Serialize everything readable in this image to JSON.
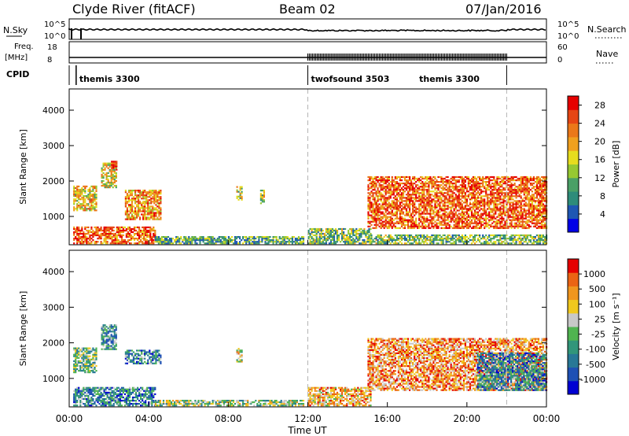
{
  "header": {
    "site": "Clyde River (fitACF)",
    "beam": "Beam 02",
    "date": "07/Jan/2016"
  },
  "strip_labels": {
    "nsky": "N.Sky",
    "nsky_ticks": [
      "10^5",
      "10^0"
    ],
    "nsearch": "N.Search",
    "nsearch_ticks": [
      "10^5",
      "10^0"
    ],
    "freq_line1": "Freq.",
    "freq_line2": "[MHz]",
    "freq_ticks": [
      "18",
      "8"
    ],
    "nave": "Nave",
    "nave_ticks": [
      "60",
      "0"
    ],
    "cpid": "CPID"
  },
  "cpid_segments": [
    {
      "label": "themis 3300",
      "start_hour": 0.35,
      "end_hour": 12.0
    },
    {
      "label": "twofsound 3503",
      "start_hour": 12.0,
      "end_hour": 22.0
    },
    {
      "label": "themis 3300",
      "start_hour": 22.0,
      "end_hour": 24.0,
      "label_at_hour": 17.6
    }
  ],
  "colors": {
    "power": [
      "#0000e6",
      "#1f57b3",
      "#2e8c7a",
      "#4aa066",
      "#96c832",
      "#e6dc1e",
      "#f0a01e",
      "#eb7819",
      "#e64614",
      "#e60000"
    ],
    "velocity": [
      "#0000d2",
      "#1e50b4",
      "#287896",
      "#32967a",
      "#50b450",
      "#c8c8c8",
      "#f0c81e",
      "#f0961e",
      "#eb6414",
      "#e60000"
    ],
    "dashed_marker": "#b4b4b4"
  },
  "chart_data": [
    {
      "type": "heatmap",
      "title": "Power",
      "xlabel": "Time UT",
      "ylabel": "Slant Range [km]",
      "xlim": [
        0,
        24
      ],
      "ylim": [
        200,
        4600
      ],
      "x_ticks": [
        "00:00",
        "04:00",
        "08:00",
        "12:00",
        "16:00",
        "20:00",
        "00:00"
      ],
      "y_ticks": [
        "1000",
        "2000",
        "3000",
        "4000"
      ],
      "colorbar": {
        "label": "Power [dB]",
        "ticks": [
          "4",
          "8",
          "12",
          "16",
          "20",
          "24",
          "28"
        ],
        "range": [
          0,
          30
        ]
      },
      "dashed_lines_hour": [
        12,
        22
      ],
      "regions": [
        {
          "t": [
            0.2,
            1.4
          ],
          "r": [
            1150,
            1850
          ],
          "level": 0.6
        },
        {
          "t": [
            0.2,
            4.3
          ],
          "r": [
            220,
            700
          ],
          "level": 0.8
        },
        {
          "t": [
            1.6,
            2.4
          ],
          "r": [
            1800,
            2500
          ],
          "level": 0.55
        },
        {
          "t": [
            2.1,
            2.4
          ],
          "r": [
            2300,
            2550
          ],
          "level": 0.85
        },
        {
          "t": [
            2.8,
            4.6
          ],
          "r": [
            900,
            1750
          ],
          "level": 0.7
        },
        {
          "t": [
            4.3,
            11.8
          ],
          "r": [
            220,
            420
          ],
          "level": 0.35
        },
        {
          "t": [
            8.4,
            8.7
          ],
          "r": [
            1450,
            1850
          ],
          "level": 0.5
        },
        {
          "t": [
            9.6,
            9.8
          ],
          "r": [
            1350,
            1750
          ],
          "level": 0.5
        },
        {
          "t": [
            12.0,
            15.2
          ],
          "r": [
            220,
            650
          ],
          "level": 0.4
        },
        {
          "t": [
            15.0,
            24.0
          ],
          "r": [
            650,
            2100
          ],
          "level": 0.8
        },
        {
          "t": [
            15.0,
            24.0
          ],
          "r": [
            220,
            450
          ],
          "level": 0.4
        }
      ]
    },
    {
      "type": "heatmap",
      "title": "Velocity",
      "xlabel": "Time UT",
      "ylabel": "Slant Range [km]",
      "xlim": [
        0,
        24
      ],
      "ylim": [
        200,
        4600
      ],
      "x_ticks": [
        "00:00",
        "04:00",
        "08:00",
        "12:00",
        "16:00",
        "20:00",
        "00:00"
      ],
      "y_ticks": [
        "1000",
        "2000",
        "3000",
        "4000"
      ],
      "colorbar": {
        "label": "Velocity [m s⁻¹]",
        "ticks": [
          "1000",
          "500",
          "100",
          "25",
          "-25",
          "-100",
          "-500",
          "-1000"
        ],
        "range": [
          -1000,
          1000
        ]
      },
      "dashed_lines_hour": [
        12,
        22
      ],
      "regions": [
        {
          "t": [
            0.2,
            1.4
          ],
          "r": [
            1150,
            1850
          ],
          "level": 0.45
        },
        {
          "t": [
            0.2,
            4.3
          ],
          "r": [
            220,
            750
          ],
          "level": 0.3
        },
        {
          "t": [
            1.6,
            2.4
          ],
          "r": [
            1800,
            2500
          ],
          "level": 0.35
        },
        {
          "t": [
            2.8,
            4.6
          ],
          "r": [
            1400,
            1800
          ],
          "level": 0.3
        },
        {
          "t": [
            4.3,
            11.8
          ],
          "r": [
            220,
            400
          ],
          "level": 0.5
        },
        {
          "t": [
            8.4,
            8.7
          ],
          "r": [
            1450,
            1850
          ],
          "level": 0.6
        },
        {
          "t": [
            12.0,
            15.2
          ],
          "r": [
            220,
            750
          ],
          "level": 0.7
        },
        {
          "t": [
            15.0,
            24.0
          ],
          "r": [
            650,
            2100
          ],
          "level": 0.75
        },
        {
          "t": [
            20.5,
            24.0
          ],
          "r": [
            650,
            1700
          ],
          "level": 0.3
        }
      ]
    }
  ]
}
